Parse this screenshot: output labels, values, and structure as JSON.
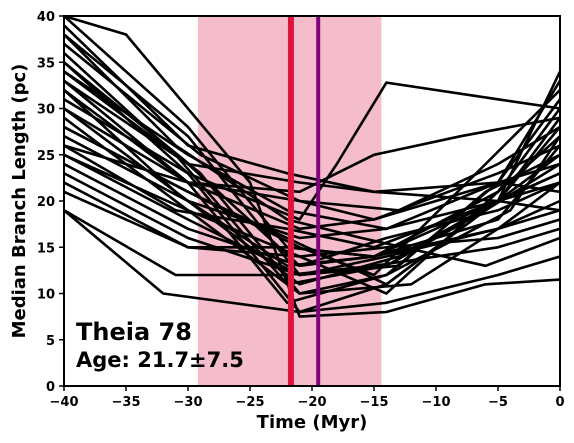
{
  "chart_data": {
    "type": "line",
    "title": "",
    "xlabel": "Time (Myr)",
    "ylabel": "Median Branch Length (pc)",
    "xlim": [
      -40,
      0
    ],
    "ylim": [
      0,
      40
    ],
    "xticks": [
      -40,
      -35,
      -30,
      -25,
      -20,
      -15,
      -10,
      -5,
      0
    ],
    "xtick_labels": [
      "−40",
      "−35",
      "−30",
      "−25",
      "−20",
      "−15",
      "−10",
      "−5",
      "0"
    ],
    "yticks": [
      0,
      5,
      10,
      15,
      20,
      25,
      30,
      35,
      40
    ],
    "ytick_labels": [
      "0",
      "5",
      "10",
      "15",
      "20",
      "25",
      "30",
      "35",
      "40"
    ],
    "grid": false,
    "age_band": {
      "x_start": -29.2,
      "x_end": -14.4,
      "color": "#f4b6c6"
    },
    "vlines": [
      {
        "x": -21.7,
        "color": "#dc143c"
      },
      {
        "x": -19.5,
        "color": "#800080"
      }
    ],
    "series_color": "#000000",
    "series": [
      {
        "x": [
          -40,
          -30,
          -22,
          -15,
          -5,
          0
        ],
        "values": [
          40,
          28,
          15,
          14,
          20,
          25
        ]
      },
      {
        "x": [
          -40,
          -30,
          -21,
          -14,
          -6,
          0
        ],
        "values": [
          38,
          27,
          12,
          13,
          19,
          24
        ]
      },
      {
        "x": [
          -40,
          -31,
          -22,
          -14,
          -5,
          0
        ],
        "values": [
          36,
          25,
          11,
          13,
          20,
          23
        ]
      },
      {
        "x": [
          -40,
          -29,
          -21,
          -12,
          -5,
          0
        ],
        "values": [
          35,
          23,
          10,
          11,
          17,
          22
        ]
      },
      {
        "x": [
          -40,
          -30,
          -21,
          -15,
          -5,
          0
        ],
        "values": [
          34,
          24,
          13,
          14,
          18,
          26
        ]
      },
      {
        "x": [
          -40,
          -30,
          -22,
          -14,
          -4,
          0
        ],
        "values": [
          33,
          22,
          9,
          12,
          19,
          27
        ]
      },
      {
        "x": [
          -40,
          -31,
          -21,
          -13,
          -5,
          0
        ],
        "values": [
          32,
          21,
          11,
          14,
          20,
          28
        ]
      },
      {
        "x": [
          -40,
          -30,
          -21,
          -14,
          -5,
          0
        ],
        "values": [
          31,
          23,
          8,
          11,
          20,
          29
        ]
      },
      {
        "x": [
          -40,
          -30,
          -22,
          -15,
          -5,
          0
        ],
        "values": [
          30,
          20,
          13,
          14,
          21,
          30
        ]
      },
      {
        "x": [
          -40,
          -30,
          -21,
          -14,
          -5,
          0
        ],
        "values": [
          29,
          19,
          10,
          12,
          22,
          31
        ]
      },
      {
        "x": [
          -40,
          -30,
          -21,
          -15,
          -6,
          0
        ],
        "values": [
          28,
          21,
          15,
          12,
          24,
          32
        ]
      },
      {
        "x": [
          -40,
          -30,
          -21,
          -14,
          -5,
          0
        ],
        "values": [
          27,
          20,
          16,
          17,
          22,
          33
        ]
      },
      {
        "x": [
          -40,
          -31,
          -22,
          -15,
          -5,
          0
        ],
        "values": [
          26,
          19,
          17,
          15,
          20,
          34
        ]
      },
      {
        "x": [
          -40,
          -30,
          -21,
          -13,
          -6,
          0
        ],
        "values": [
          25,
          18,
          12,
          13,
          21,
          25
        ]
      },
      {
        "x": [
          -40,
          -30,
          -21,
          -14,
          -5,
          0
        ],
        "values": [
          24,
          17,
          13,
          16,
          19,
          22
        ]
      },
      {
        "x": [
          -40,
          -30,
          -21,
          -14,
          -5,
          0
        ],
        "values": [
          23,
          16,
          12,
          14,
          17,
          20
        ]
      },
      {
        "x": [
          -40,
          -30,
          -21,
          -14,
          -5,
          0
        ],
        "values": [
          22,
          15,
          14,
          15,
          16,
          18
        ]
      },
      {
        "x": [
          -40,
          -30,
          -22,
          -15,
          -5,
          0
        ],
        "values": [
          21,
          15,
          15,
          14,
          17,
          19
        ]
      },
      {
        "x": [
          -40,
          -31,
          -22,
          -15,
          -5,
          0
        ],
        "values": [
          19,
          12,
          12,
          13,
          15,
          17
        ]
      },
      {
        "x": [
          -40,
          -32,
          -21,
          -14,
          -5,
          0
        ],
        "values": [
          19,
          10,
          8,
          9,
          12,
          14
        ]
      },
      {
        "x": [
          -40,
          -35,
          -25,
          -21,
          -14,
          -6,
          0
        ],
        "values": [
          40,
          38,
          22,
          7.5,
          8,
          11,
          11.5
        ]
      },
      {
        "x": [
          -40,
          -29,
          -21,
          -13,
          -5,
          0
        ],
        "values": [
          37,
          25,
          20,
          19,
          24,
          28
        ]
      },
      {
        "x": [
          -40,
          -30,
          -22,
          -15,
          -5,
          0
        ],
        "values": [
          39,
          26,
          23,
          21,
          22,
          21
        ]
      },
      {
        "x": [
          -40,
          -30,
          -21,
          -18,
          -14,
          -5,
          0
        ],
        "values": [
          35,
          23,
          18,
          24,
          32.8,
          31,
          30
        ]
      },
      {
        "x": [
          -40,
          -30,
          -21,
          -15,
          -8,
          0
        ],
        "values": [
          30,
          22,
          21,
          25,
          27,
          29
        ]
      },
      {
        "x": [
          -40,
          -30,
          -21,
          -15,
          -5,
          0
        ],
        "values": [
          33,
          24,
          22,
          21,
          20,
          19
        ]
      },
      {
        "x": [
          -40,
          -30,
          -21,
          -15,
          -5,
          0
        ],
        "values": [
          26,
          22,
          17,
          18,
          23,
          26
        ]
      },
      {
        "x": [
          -40,
          -30,
          -22,
          -14,
          -5,
          0
        ],
        "values": [
          28,
          21,
          16,
          11,
          20,
          23
        ]
      },
      {
        "x": [
          -40,
          -30,
          -21,
          -14,
          -5,
          0
        ],
        "values": [
          25,
          19,
          14,
          10,
          21,
          27
        ]
      },
      {
        "x": [
          -40,
          -30,
          -21,
          -15,
          -5,
          0
        ],
        "values": [
          32,
          22,
          20,
          18,
          22,
          24
        ]
      },
      {
        "x": [
          -40,
          -30,
          -22,
          -14,
          -5,
          0
        ],
        "values": [
          34,
          25,
          19,
          17,
          20,
          22
        ]
      },
      {
        "x": [
          -40,
          -31,
          -22,
          -16,
          -6,
          0
        ],
        "values": [
          38,
          26,
          18,
          16,
          13,
          16
        ]
      }
    ]
  },
  "annotation": {
    "title": "Theia 78",
    "age": "Age: 21.7±7.5"
  }
}
